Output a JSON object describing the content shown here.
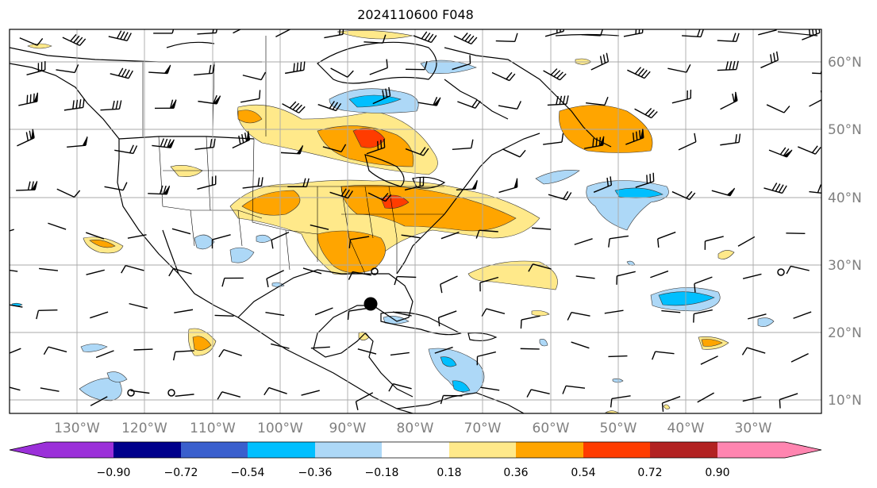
{
  "title": "2024110600 F048",
  "lat_labels": [
    "60°N",
    "50°N",
    "40°N",
    "30°N",
    "20°N",
    "10°N"
  ],
  "lon_labels": [
    "130°W",
    "120°W",
    "110°W",
    "100°W",
    "90°W",
    "80°W",
    "70°W",
    "60°W",
    "50°W",
    "40°W",
    "30°W"
  ],
  "colorbar": {
    "ticks": [
      "−0.90",
      "−0.72",
      "−0.54",
      "−0.36",
      "−0.18",
      "0.18",
      "0.36",
      "0.54",
      "0.72",
      "0.90"
    ],
    "colors": [
      "#9b30d9",
      "#00008b",
      "#3a5fcd",
      "#00bfff",
      "#add8f7",
      "#ffffff",
      "#ffe98a",
      "#ffa500",
      "#ff3c00",
      "#b22222",
      "#ff85b0"
    ]
  },
  "map": {
    "extent": {
      "lon": [
        -135,
        -25
      ],
      "lat": [
        8,
        65
      ]
    },
    "gridlines": true,
    "storm_marker": "black-dot",
    "shading_colors": {
      "pos1": "#ffe98a",
      "pos2": "#ffa500",
      "pos3": "#ff3c00",
      "neg1": "#add8f7",
      "neg2": "#00bfff"
    }
  }
}
